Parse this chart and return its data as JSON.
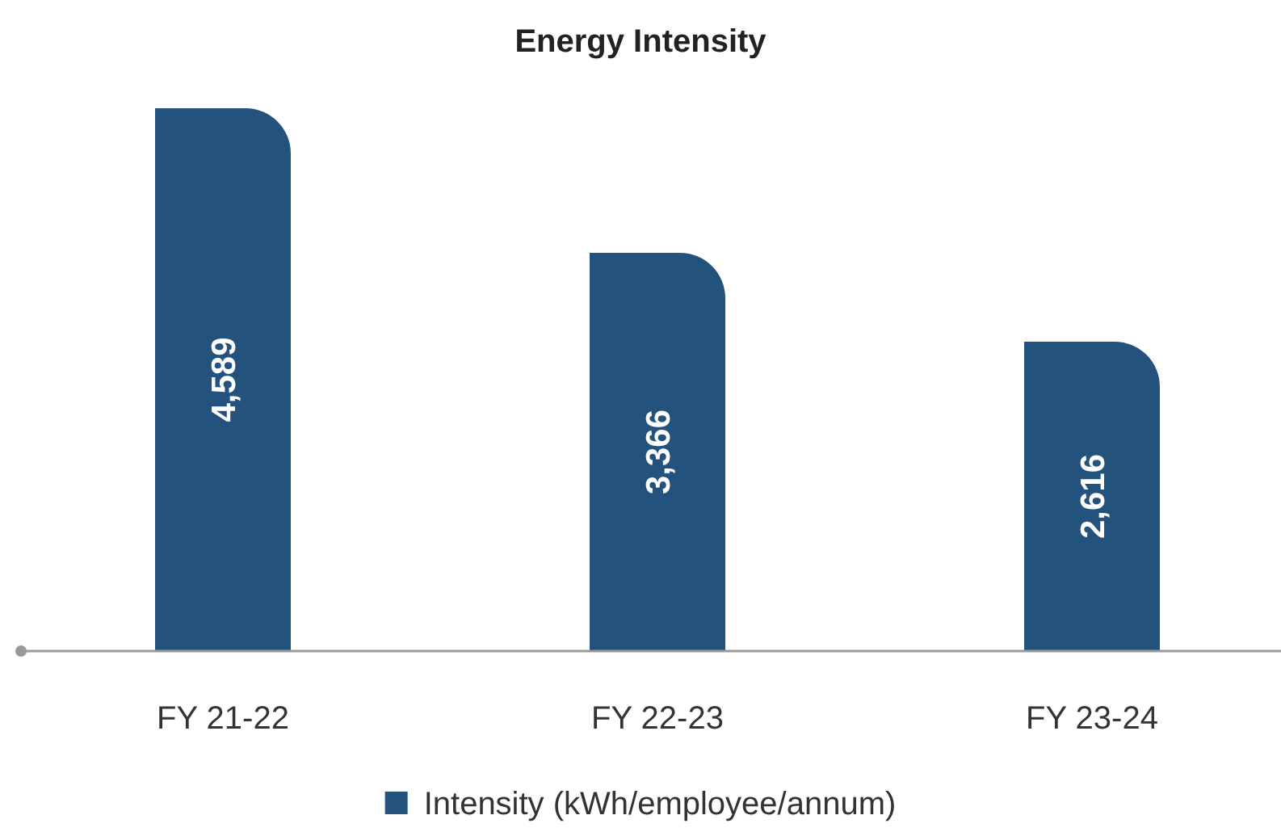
{
  "chart_data": {
    "type": "bar",
    "title": "Energy Intensity",
    "categories": [
      "FY 21-22",
      "FY 22-23",
      "FY 23-24"
    ],
    "series": [
      {
        "name": "Intensity (kWh/employee/annum)",
        "color": "#23527c",
        "values": [
          4589,
          3366,
          2616
        ],
        "value_labels": [
          "4,589",
          "3,366",
          "2,616"
        ]
      }
    ],
    "legend": "bottom",
    "grid": false
  }
}
